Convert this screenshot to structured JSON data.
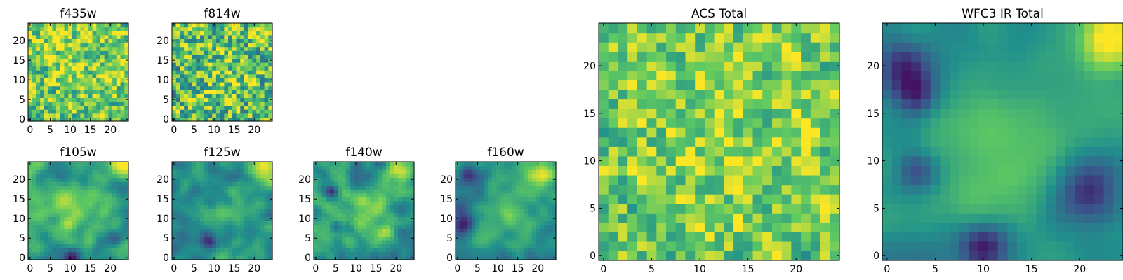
{
  "figure": {
    "colormap": "viridis",
    "colormap_stops": [
      "#440154",
      "#3b528b",
      "#21918c",
      "#5ec962",
      "#fde725"
    ]
  },
  "chart_data": [
    {
      "id": "f435w",
      "type": "heatmap",
      "title": "f435w",
      "grid_size": 25,
      "xlim": [
        0,
        24
      ],
      "ylim": [
        0,
        24
      ],
      "x_ticks": [
        0,
        5,
        10,
        15,
        20
      ],
      "y_ticks": [
        0,
        5,
        10,
        15,
        20
      ],
      "x_tick_labels": [
        "0",
        "5",
        "10",
        "15",
        "20"
      ],
      "y_tick_labels": [
        "0",
        "5",
        "10",
        "15",
        "20"
      ],
      "texture": "noisy",
      "seed": 11,
      "value_range": [
        0,
        1
      ],
      "mean": 0.75,
      "noise": 0.33,
      "smooth": 0.35,
      "blobs": [
        {
          "x": 13,
          "y": 16,
          "v": 0.08,
          "s": 6
        }
      ]
    },
    {
      "id": "f814w",
      "type": "heatmap",
      "title": "f814w",
      "grid_size": 25,
      "xlim": [
        0,
        24
      ],
      "ylim": [
        0,
        24
      ],
      "x_ticks": [
        0,
        5,
        10,
        15,
        20
      ],
      "y_ticks": [
        0,
        5,
        10,
        15,
        20
      ],
      "x_tick_labels": [
        "0",
        "5",
        "10",
        "15",
        "20"
      ],
      "y_tick_labels": [
        "0",
        "5",
        "10",
        "15",
        "20"
      ],
      "texture": "noisy",
      "seed": 23,
      "value_range": [
        0,
        1
      ],
      "mean": 0.7,
      "noise": 0.36,
      "smooth": 0.35,
      "blobs": [
        {
          "x": 23,
          "y": 23,
          "v": 0.25,
          "s": 2.5
        },
        {
          "x": 12,
          "y": 11,
          "v": 0.12,
          "s": 4
        }
      ]
    },
    {
      "id": "f105w",
      "type": "heatmap",
      "title": "f105w",
      "grid_size": 25,
      "xlim": [
        0,
        24
      ],
      "ylim": [
        0,
        24
      ],
      "x_ticks": [
        0,
        5,
        10,
        15,
        20
      ],
      "y_ticks": [
        0,
        5,
        10,
        15,
        20
      ],
      "x_tick_labels": [
        "0",
        "5",
        "10",
        "15",
        "20"
      ],
      "y_tick_labels": [
        "0",
        "5",
        "10",
        "15",
        "20"
      ],
      "texture": "smooth",
      "seed": 37,
      "value_range": [
        0,
        1
      ],
      "mean": 0.55,
      "noise": 0.22,
      "smooth": 0.7,
      "blobs": [
        {
          "x": 23,
          "y": 23,
          "v": 0.4,
          "s": 2.5
        },
        {
          "x": 11,
          "y": 12,
          "v": 0.25,
          "s": 5
        },
        {
          "x": 10,
          "y": 0,
          "v": -0.5,
          "s": 1.5
        },
        {
          "x": 21,
          "y": 5,
          "v": -0.3,
          "s": 1.5
        }
      ]
    },
    {
      "id": "f125w",
      "type": "heatmap",
      "title": "f125w",
      "grid_size": 25,
      "xlim": [
        0,
        24
      ],
      "ylim": [
        0,
        24
      ],
      "x_ticks": [
        0,
        5,
        10,
        15,
        20
      ],
      "y_ticks": [
        0,
        5,
        10,
        15,
        20
      ],
      "x_tick_labels": [
        "0",
        "5",
        "10",
        "15",
        "20"
      ],
      "y_tick_labels": [
        "0",
        "5",
        "10",
        "15",
        "20"
      ],
      "texture": "smooth",
      "seed": 41,
      "value_range": [
        0,
        1
      ],
      "mean": 0.48,
      "noise": 0.22,
      "smooth": 0.7,
      "blobs": [
        {
          "x": 23,
          "y": 23,
          "v": 0.45,
          "s": 2.5
        },
        {
          "x": 14,
          "y": 11,
          "v": 0.22,
          "s": 4
        },
        {
          "x": 9,
          "y": 5,
          "v": -0.3,
          "s": 1.5
        }
      ]
    },
    {
      "id": "f140w",
      "type": "heatmap",
      "title": "f140w",
      "grid_size": 25,
      "xlim": [
        0,
        24
      ],
      "ylim": [
        0,
        24
      ],
      "x_ticks": [
        0,
        5,
        10,
        15,
        20
      ],
      "y_ticks": [
        0,
        5,
        10,
        15,
        20
      ],
      "x_tick_labels": [
        "0",
        "5",
        "10",
        "15",
        "20"
      ],
      "y_tick_labels": [
        "0",
        "5",
        "10",
        "15",
        "20"
      ],
      "texture": "smooth",
      "seed": 53,
      "value_range": [
        0,
        1
      ],
      "mean": 0.55,
      "noise": 0.25,
      "smooth": 0.65,
      "blobs": [
        {
          "x": 22,
          "y": 22,
          "v": 0.4,
          "s": 3
        },
        {
          "x": 14,
          "y": 11,
          "v": 0.25,
          "s": 4
        },
        {
          "x": 4,
          "y": 17,
          "v": -0.45,
          "s": 1.2
        },
        {
          "x": 5,
          "y": 8,
          "v": -0.35,
          "s": 1.2
        }
      ]
    },
    {
      "id": "f160w",
      "type": "heatmap",
      "title": "f160w",
      "grid_size": 25,
      "xlim": [
        0,
        24
      ],
      "ylim": [
        0,
        24
      ],
      "x_ticks": [
        0,
        5,
        10,
        15,
        20
      ],
      "y_ticks": [
        0,
        5,
        10,
        15,
        20
      ],
      "x_tick_labels": [
        "0",
        "5",
        "10",
        "15",
        "20"
      ],
      "y_tick_labels": [
        "0",
        "5",
        "10",
        "15",
        "20"
      ],
      "texture": "smooth",
      "seed": 67,
      "value_range": [
        0,
        1
      ],
      "mean": 0.5,
      "noise": 0.2,
      "smooth": 0.75,
      "blobs": [
        {
          "x": 21,
          "y": 21,
          "v": 0.35,
          "s": 3.5
        },
        {
          "x": 12,
          "y": 12,
          "v": 0.2,
          "s": 5
        },
        {
          "x": 2,
          "y": 9,
          "v": -0.45,
          "s": 2
        },
        {
          "x": 3,
          "y": 21,
          "v": -0.3,
          "s": 2
        }
      ]
    },
    {
      "id": "acs-total",
      "type": "heatmap",
      "title": "ACS Total",
      "grid_size": 25,
      "xlim": [
        0,
        24
      ],
      "ylim": [
        0,
        24
      ],
      "x_ticks": [
        0,
        5,
        10,
        15,
        20
      ],
      "y_ticks": [
        0,
        5,
        10,
        15,
        20
      ],
      "x_tick_labels": [
        "0",
        "5",
        "10",
        "15",
        "20"
      ],
      "y_tick_labels": [
        "0",
        "5",
        "10",
        "15",
        "20"
      ],
      "texture": "noisy",
      "seed": 79,
      "value_range": [
        0,
        1
      ],
      "mean": 0.76,
      "noise": 0.28,
      "smooth": 0.3,
      "blobs": [
        {
          "x": 12,
          "y": 12,
          "v": 0.08,
          "s": 6
        }
      ]
    },
    {
      "id": "wfc3-ir-total",
      "type": "heatmap",
      "title": "WFC3 IR Total",
      "grid_size": 25,
      "xlim": [
        0,
        24
      ],
      "ylim": [
        0,
        24
      ],
      "x_ticks": [
        0,
        5,
        10,
        15,
        20
      ],
      "y_ticks": [
        0,
        5,
        10,
        15,
        20
      ],
      "x_tick_labels": [
        "0",
        "5",
        "10",
        "15",
        "20"
      ],
      "y_tick_labels": [
        "0",
        "5",
        "10",
        "15",
        "20"
      ],
      "texture": "smooth",
      "seed": 97,
      "value_range": [
        0,
        1
      ],
      "mean": 0.52,
      "noise": 0.13,
      "smooth": 0.85,
      "blobs": [
        {
          "x": 23,
          "y": 23,
          "v": 0.5,
          "s": 2.5
        },
        {
          "x": 12,
          "y": 11,
          "v": 0.2,
          "s": 5
        },
        {
          "x": 2,
          "y": 20,
          "v": -0.4,
          "s": 2
        },
        {
          "x": 3,
          "y": 17,
          "v": -0.35,
          "s": 1.5
        },
        {
          "x": 21,
          "y": 7,
          "v": -0.4,
          "s": 2.5
        },
        {
          "x": 10,
          "y": 1,
          "v": -0.45,
          "s": 1.8
        },
        {
          "x": 3,
          "y": 9,
          "v": -0.3,
          "s": 1.5
        }
      ]
    }
  ]
}
